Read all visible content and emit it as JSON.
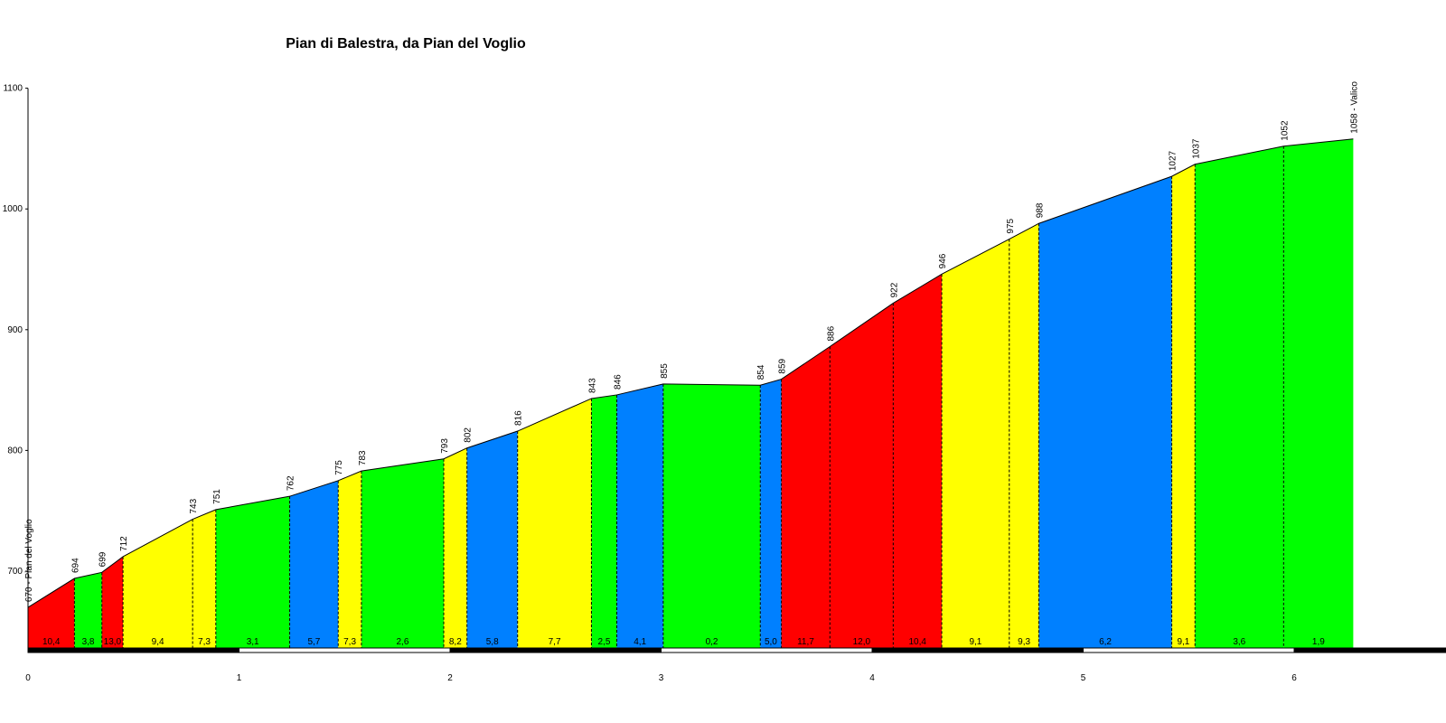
{
  "chart_data": {
    "type": "area",
    "title": "Pian di Balestra, da Pian del Voglio",
    "xlabel": "",
    "ylabel": "",
    "xlim": [
      0,
      6.6
    ],
    "ylim": [
      635,
      1100
    ],
    "x_ticks": [
      0,
      1,
      2,
      3,
      4,
      5,
      6
    ],
    "y_ticks": [
      700,
      800,
      900,
      1000,
      1100
    ],
    "grid": false,
    "legend": "none",
    "start_label": "670 - Pian del Voglio",
    "end_label": "1058 - Valico",
    "profile": [
      {
        "km": 0.0,
        "elev": 670
      },
      {
        "km": 0.22,
        "elev": 694
      },
      {
        "km": 0.35,
        "elev": 699
      },
      {
        "km": 0.45,
        "elev": 712
      },
      {
        "km": 0.78,
        "elev": 743
      },
      {
        "km": 0.89,
        "elev": 751
      },
      {
        "km": 1.24,
        "elev": 762
      },
      {
        "km": 1.47,
        "elev": 775
      },
      {
        "km": 1.58,
        "elev": 783
      },
      {
        "km": 1.97,
        "elev": 793
      },
      {
        "km": 2.08,
        "elev": 802
      },
      {
        "km": 2.32,
        "elev": 816
      },
      {
        "km": 2.67,
        "elev": 843
      },
      {
        "km": 2.79,
        "elev": 846
      },
      {
        "km": 3.01,
        "elev": 855
      },
      {
        "km": 3.47,
        "elev": 854
      },
      {
        "km": 3.57,
        "elev": 859
      },
      {
        "km": 3.8,
        "elev": 886
      },
      {
        "km": 4.1,
        "elev": 922
      },
      {
        "km": 4.33,
        "elev": 946
      },
      {
        "km": 4.65,
        "elev": 975
      },
      {
        "km": 4.79,
        "elev": 988
      },
      {
        "km": 5.42,
        "elev": 1027
      },
      {
        "km": 5.53,
        "elev": 1037
      },
      {
        "km": 5.95,
        "elev": 1052
      },
      {
        "km": 6.28,
        "elev": 1058
      }
    ],
    "elevation_labels": [
      "694",
      "699",
      "712",
      "743",
      "751",
      "762",
      "775",
      "783",
      "793",
      "802",
      "816",
      "843",
      "846",
      "855",
      "854",
      "859",
      "886",
      "922",
      "946",
      "975",
      "988",
      "1027",
      "1037",
      "1052"
    ],
    "gradients": [
      "10,4",
      "3,8",
      "13,0",
      "9,4",
      "7,3",
      "3,1",
      "5,7",
      "7,3",
      "2,6",
      "8,2",
      "5,8",
      "7,7",
      "2,5",
      "4,1",
      "0,2",
      "5,0",
      "11,7",
      "12,0",
      "10,4",
      "9,1",
      "9,3",
      "6,2",
      "9,1",
      "3,6",
      "1,9"
    ],
    "segment_colors": [
      "#ff0000",
      "#00ff00",
      "#ff0000",
      "#ffff00",
      "#ffff00",
      "#00ff00",
      "#0080ff",
      "#ffff00",
      "#00ff00",
      "#ffff00",
      "#0080ff",
      "#ffff00",
      "#00ff00",
      "#0080ff",
      "#00ff00",
      "#0080ff",
      "#ff0000",
      "#ff0000",
      "#ff0000",
      "#ffff00",
      "#ffff00",
      "#0080ff",
      "#ffff00",
      "#00ff00",
      "#00ff00"
    ]
  }
}
